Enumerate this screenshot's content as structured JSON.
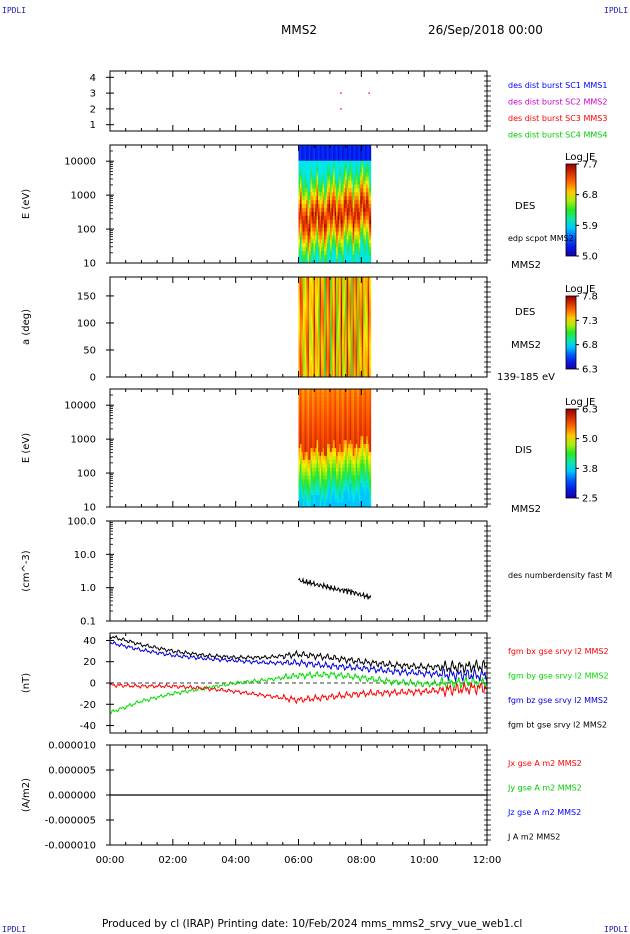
{
  "header": {
    "corner_left": "IPDLI",
    "corner_right": "IPDLI",
    "spacecraft": "MMS2",
    "date_time": "26/Sep/2018 00:00"
  },
  "footer": {
    "corner_left": "IPDLI",
    "corner_right": "IPDLI",
    "text": "Produced by cl (IRAP)   Printing date: 10/Feb/2024   mms_mms2_srvy_vue_web1.cl"
  },
  "time_axis": {
    "ticks": [
      "00:00",
      "02:00",
      "04:00",
      "06:00",
      "08:00",
      "10:00",
      "12:00"
    ],
    "range_hours": [
      0,
      12
    ]
  },
  "colors": {
    "mms1": "#0000ff",
    "mms2": "#cc00cc",
    "mms3": "#ff0000",
    "mms4": "#00cc00",
    "bx": "#ff0000",
    "by": "#00dd00",
    "bz": "#0000dd",
    "bt": "#000000"
  },
  "chart_data": [
    {
      "type": "scatter",
      "panel": "burst",
      "y_ticks": [
        "1",
        "2",
        "3",
        "4"
      ],
      "ylim": [
        0.6,
        4.4
      ],
      "series": [
        {
          "name": "des dist burst SC1 MMS1",
          "color": "#0000ff",
          "points": []
        },
        {
          "name": "des dist burst SC2 MMS2",
          "color": "#cc00cc",
          "points": []
        },
        {
          "name": "des dist burst SC3 MMS3",
          "color": "#ff0000",
          "points": [
            [
              7.35,
              3
            ],
            [
              8.25,
              3
            ],
            [
              7.35,
              2
            ]
          ]
        },
        {
          "name": "des dist burst SC4 MMS4",
          "color": "#00cc00",
          "points": []
        }
      ]
    },
    {
      "type": "heatmap",
      "panel": "des_energy",
      "ylabel": "E (eV)",
      "y_ticks": [
        "10",
        "100",
        "1000",
        "10000"
      ],
      "ylog": true,
      "ylim": [
        10,
        30000
      ],
      "xlim_data": [
        6.0,
        8.3
      ],
      "right_labels": [
        "DES",
        "MMS2"
      ],
      "overlay_label": "edp scpot MMS2",
      "colorbar": {
        "title": "Log JE",
        "ticks": [
          "5.0",
          "5.9",
          "6.8",
          "7.7"
        ],
        "range": [
          5.0,
          7.7
        ]
      }
    },
    {
      "type": "heatmap",
      "panel": "des_pitch",
      "ylabel": "a (deg)",
      "y_ticks": [
        "0",
        "50",
        "100",
        "150"
      ],
      "ylim": [
        0,
        185
      ],
      "xlim_data": [
        6.0,
        8.3
      ],
      "right_labels": [
        "DES",
        "MMS2",
        "139-185 eV"
      ],
      "colorbar": {
        "title": "Log JE",
        "ticks": [
          "6.3",
          "6.8",
          "7.3",
          "7.8"
        ],
        "range": [
          6.3,
          7.8
        ]
      }
    },
    {
      "type": "heatmap",
      "panel": "dis_energy",
      "ylabel": "E (eV)",
      "y_ticks": [
        "10",
        "100",
        "1000",
        "10000"
      ],
      "ylog": true,
      "ylim": [
        10,
        30000
      ],
      "xlim_data": [
        6.0,
        8.3
      ],
      "right_labels": [
        "DIS",
        "MMS2"
      ],
      "colorbar": {
        "title": "Log JE",
        "ticks": [
          "2.5",
          "3.8",
          "5.0",
          "6.3"
        ],
        "range": [
          2.5,
          6.3
        ]
      }
    },
    {
      "type": "line",
      "panel": "density",
      "ylabel": "(cm^-3)",
      "y_ticks": [
        "0.1",
        "1.0",
        "10.0",
        "100.0"
      ],
      "ylog": true,
      "ylim": [
        0.1,
        100
      ],
      "series": [
        {
          "name": "des numberdensity fast M",
          "color": "#000000",
          "x": [
            6.0,
            6.2,
            6.4,
            6.6,
            6.8,
            7.0,
            7.2,
            7.4,
            7.6,
            7.8,
            8.0,
            8.2,
            8.3
          ],
          "y": [
            1.7,
            1.5,
            1.4,
            1.2,
            1.15,
            1.0,
            0.9,
            0.85,
            0.8,
            0.7,
            0.6,
            0.55,
            0.5
          ]
        }
      ]
    },
    {
      "type": "line",
      "panel": "fgm",
      "ylabel": "(nT)",
      "y_ticks": [
        "-40",
        "-20",
        "0",
        "20",
        "40"
      ],
      "ylim": [
        -47,
        47
      ],
      "x": [
        0,
        1,
        2,
        3,
        4,
        5,
        6,
        7,
        8,
        9,
        10,
        11,
        12
      ],
      "series": [
        {
          "name": "fgm bx gse srvy l2 MMS2",
          "color": "#ff0000",
          "values": [
            -2,
            -3,
            -3,
            -5,
            -8,
            -12,
            -16,
            -13,
            -10,
            -9,
            -8,
            -6,
            -4
          ]
        },
        {
          "name": "fgm by gse srvy l2 MMS2",
          "color": "#00dd00",
          "values": [
            -28,
            -17,
            -10,
            -5,
            0,
            3,
            7,
            8,
            5,
            1,
            -1,
            0,
            1
          ]
        },
        {
          "name": "fgm bz gse srvy l2 MMS2",
          "color": "#0000dd",
          "values": [
            38,
            31,
            26,
            23,
            21,
            19,
            19,
            16,
            14,
            11,
            9,
            8,
            7
          ]
        },
        {
          "name": "fgm bt gse srvy l2 MMS2",
          "color": "#000000",
          "values": [
            44,
            36,
            30,
            26,
            24,
            24,
            27,
            24,
            20,
            17,
            15,
            15,
            16
          ]
        }
      ]
    },
    {
      "type": "line",
      "panel": "current",
      "ylabel": "(A/m2)",
      "y_ticks": [
        "-0.000010",
        "-0.000005",
        "0.000000",
        "0.000005",
        "0.000010"
      ],
      "ylim": [
        -1e-05,
        1e-05
      ],
      "series": [
        {
          "name": "Jx gse A m2 MMS2",
          "color": "#ff0000"
        },
        {
          "name": "Jy gse A m2 MMS2",
          "color": "#00cc00"
        },
        {
          "name": "Jz gse A m2 MMS2",
          "color": "#0000ff"
        },
        {
          "name": "J A m2 MMS2",
          "color": "#000000",
          "x": [
            0,
            12
          ],
          "y": [
            0,
            0
          ]
        }
      ]
    }
  ]
}
